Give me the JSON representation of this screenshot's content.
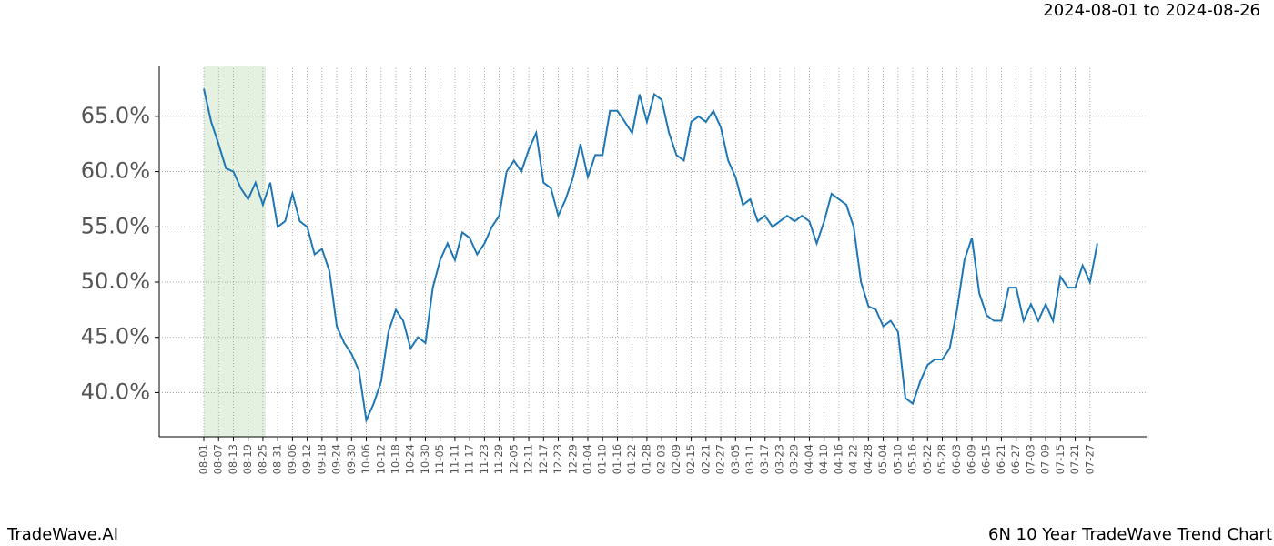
{
  "chart_data": {
    "type": "line",
    "title": "2024-08-01 to 2024-08-26",
    "footer_left": "TradeWave.AI",
    "footer_right": "6N 10 Year TradeWave Trend Chart",
    "categories": [
      "08-01",
      null,
      "08-07",
      null,
      "08-13",
      null,
      "08-19",
      null,
      "08-25",
      null,
      "08-31",
      null,
      "09-06",
      null,
      "09-12",
      null,
      "09-18",
      null,
      "09-24",
      null,
      "09-30",
      null,
      "10-06",
      null,
      "10-12",
      null,
      "10-18",
      null,
      "10-24",
      null,
      "10-30",
      null,
      "11-05",
      null,
      "11-11",
      null,
      "11-17",
      null,
      "11-23",
      null,
      "11-29",
      null,
      "12-05",
      null,
      "12-11",
      null,
      "12-17",
      null,
      "12-23",
      null,
      "12-29",
      null,
      "01-04",
      null,
      "01-10",
      null,
      "01-16",
      null,
      "01-22",
      null,
      "01-28",
      null,
      "02-03",
      null,
      "02-09",
      null,
      "02-15",
      null,
      "02-21",
      null,
      "02-27",
      null,
      "03-05",
      null,
      "03-11",
      null,
      "03-17",
      null,
      "03-23",
      null,
      "03-29",
      null,
      "04-04",
      null,
      "04-10",
      null,
      "04-16",
      null,
      "04-22",
      null,
      "04-28",
      null,
      "05-04",
      null,
      "05-10",
      null,
      "05-16",
      null,
      "05-22",
      null,
      "05-28",
      null,
      "06-03",
      null,
      "06-09",
      null,
      "06-15",
      null,
      "06-21",
      null,
      "06-27",
      null,
      "07-03",
      null,
      "07-09",
      null,
      "07-15",
      null,
      "07-21",
      null,
      "07-27",
      null
    ],
    "series": [
      {
        "color": "#1f77b4",
        "values": [
          67.5,
          64.5,
          62.5,
          60.3,
          60.0,
          58.5,
          57.5,
          59.0,
          57.0,
          59.0,
          55.0,
          55.5,
          58.0,
          55.5,
          55.0,
          52.5,
          53.0,
          51.0,
          46.0,
          44.5,
          43.5,
          42.0,
          37.5,
          39.0,
          41.0,
          45.5,
          47.5,
          46.5,
          44.0,
          45.0,
          44.5,
          49.5,
          52.0,
          53.5,
          52.0,
          54.5,
          54.0,
          52.5,
          53.5,
          55.0,
          56.0,
          60.0,
          61.0,
          60.0,
          62.0,
          63.5,
          59.0,
          58.5,
          56.0,
          57.5,
          59.5,
          62.5,
          59.5,
          61.5,
          61.5,
          65.5,
          65.5,
          64.5,
          63.5,
          67.0,
          64.5,
          67.0,
          66.5,
          63.5,
          61.5,
          61.0,
          64.5,
          65.0,
          64.5,
          65.5,
          64.0,
          61.0,
          59.5,
          57.0,
          57.5,
          55.5,
          56.0,
          55.0,
          55.5,
          56.0,
          55.5,
          56.0,
          55.5,
          53.5,
          55.5,
          58.0,
          57.5,
          57.0,
          55.0,
          50.0,
          47.8,
          47.5,
          46.0,
          46.5,
          45.5,
          39.5,
          39.0,
          41.0,
          42.5,
          43.0,
          43.0,
          44.0,
          47.5,
          52.0,
          54.0,
          49.0,
          47.0,
          46.5,
          46.5,
          49.5,
          49.5,
          46.5,
          48.0,
          46.5,
          48.0,
          46.5,
          50.5,
          49.5,
          49.5,
          51.5,
          50.0,
          53.5
        ]
      }
    ],
    "ylim": [
      36.0,
      69.6
    ],
    "yticks": [
      {
        "value": 40,
        "label": "40.0%"
      },
      {
        "value": 45,
        "label": "45.0%"
      },
      {
        "value": 50,
        "label": "50.0%"
      },
      {
        "value": 55,
        "label": "55.0%"
      },
      {
        "value": 60,
        "label": "60.0%"
      },
      {
        "value": 65,
        "label": "65.0%"
      }
    ],
    "grid": true
  }
}
